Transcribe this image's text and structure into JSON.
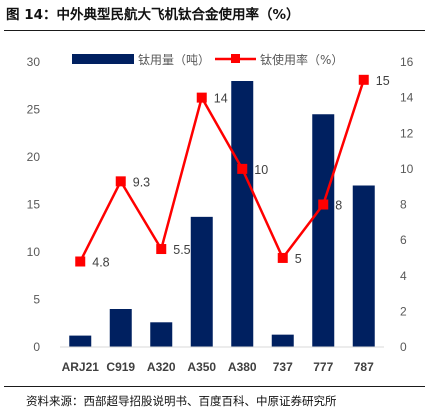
{
  "figure": {
    "title": "图 14：中外典型民航大飞机钛合金使用率（%）",
    "source": "资料来源：西部超导招股说明书、百度百科、中原证券研究所"
  },
  "chart_data": {
    "type": "bar+line",
    "categories": [
      "ARJ21",
      "C919",
      "A320",
      "A350",
      "A380",
      "737",
      "777",
      "787"
    ],
    "series": [
      {
        "name": "钛用量（吨）",
        "type": "bar",
        "axis": "left",
        "color": "#002060",
        "values": [
          1.2,
          4.0,
          2.6,
          13.7,
          28.0,
          1.3,
          24.5,
          17.0
        ]
      },
      {
        "name": "钛使用率（%）",
        "type": "line",
        "axis": "right",
        "color": "#ff0000",
        "values": [
          4.8,
          9.3,
          5.5,
          14,
          10,
          5,
          8,
          15
        ],
        "labels": [
          "4.8",
          "9.3",
          "5.5",
          "14",
          "10",
          "5",
          "8",
          "15"
        ]
      }
    ],
    "y_left": {
      "min": 0,
      "max": 30,
      "ticks": [
        "0",
        "5",
        "10",
        "15",
        "20",
        "25",
        "30"
      ]
    },
    "y_right": {
      "min": 0,
      "max": 16,
      "ticks": [
        "0",
        "2",
        "4",
        "6",
        "8",
        "10",
        "12",
        "14",
        "16"
      ]
    },
    "grid": false,
    "legend": "top"
  }
}
